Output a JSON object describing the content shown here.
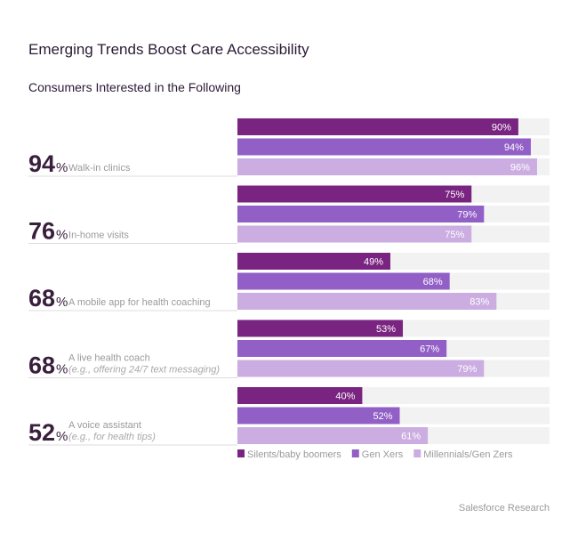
{
  "chart_data": {
    "type": "bar",
    "orientation": "horizontal",
    "title": "Emerging Trends Boost Care Accessibility",
    "subtitle": "Consumers Interested in the Following",
    "xlim": [
      0,
      100
    ],
    "grid": false,
    "legend_position": "bottom",
    "categories": [
      {
        "overall": "94",
        "label": "Walk-in clinics",
        "note": ""
      },
      {
        "overall": "76",
        "label": "In-home visits",
        "note": ""
      },
      {
        "overall": "68",
        "label": "A mobile app for health coaching",
        "note": ""
      },
      {
        "overall": "68",
        "label": "A live health coach",
        "note": "(e.g., offering 24/7 text messaging)"
      },
      {
        "overall": "52",
        "label": "A voice assistant",
        "note": "(e.g., for health tips)"
      }
    ],
    "percent_sign": "%",
    "series": [
      {
        "name": "Silents/baby boomers",
        "color": "#7a2481",
        "values": [
          90,
          75,
          49,
          53,
          40
        ]
      },
      {
        "name": "Gen Xers",
        "color": "#915fc6",
        "values": [
          94,
          79,
          68,
          67,
          52
        ]
      },
      {
        "name": "Millennials/Gen Zers",
        "color": "#cbade2",
        "values": [
          96,
          75,
          83,
          79,
          61
        ]
      }
    ],
    "track_color": "#f2f2f2",
    "source": "Salesforce Research"
  }
}
